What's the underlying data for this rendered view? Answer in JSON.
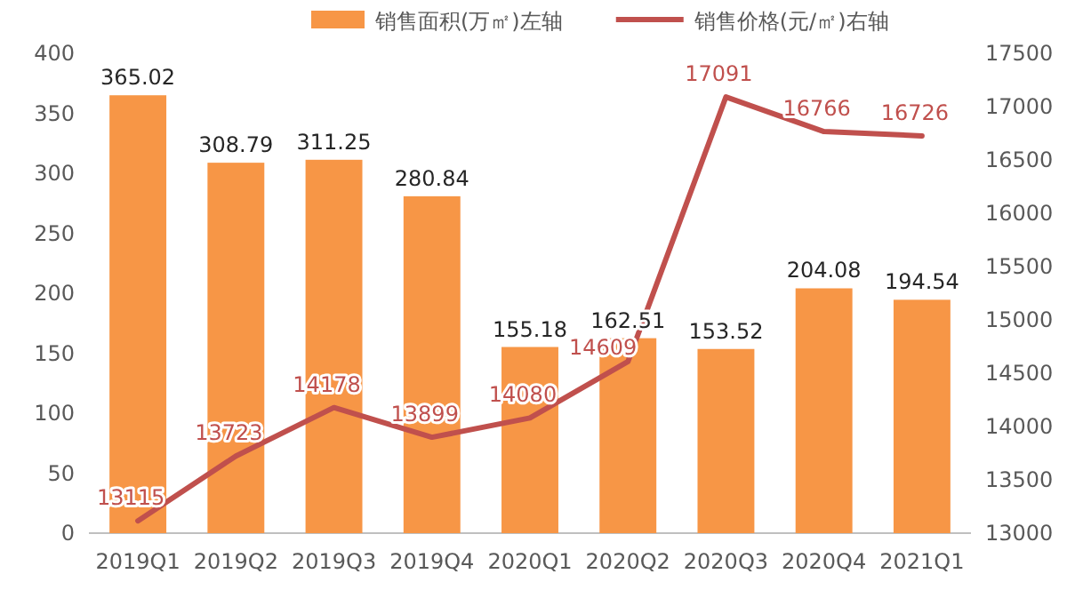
{
  "chart_data": {
    "type": "bar",
    "categories": [
      "2019Q1",
      "2019Q2",
      "2019Q3",
      "2019Q4",
      "2020Q1",
      "2020Q2",
      "2020Q3",
      "2020Q4",
      "2021Q1"
    ],
    "series": [
      {
        "name": "销售面积(万㎡)左轴",
        "color": "#f79646",
        "values": [
          365.02,
          308.79,
          311.25,
          280.84,
          155.18,
          162.51,
          153.52,
          204.08,
          194.54
        ]
      },
      {
        "type": "line",
        "axis": "y2",
        "name": "销售价格(元/㎡)右轴",
        "color": "#c0504d",
        "values": [
          13115,
          13723,
          14178,
          13899,
          14080,
          14609,
          17091,
          16766,
          16726
        ]
      }
    ],
    "ylim": [
      0,
      400
    ],
    "yticks": [
      0,
      50,
      100,
      150,
      200,
      250,
      300,
      350,
      400
    ],
    "y2lim": [
      13000,
      17500
    ],
    "y2ticks": [
      13000,
      13500,
      14000,
      14500,
      15000,
      15500,
      16000,
      16500,
      17000,
      17500
    ],
    "data_labels": true,
    "legend": "top",
    "grid": false
  }
}
